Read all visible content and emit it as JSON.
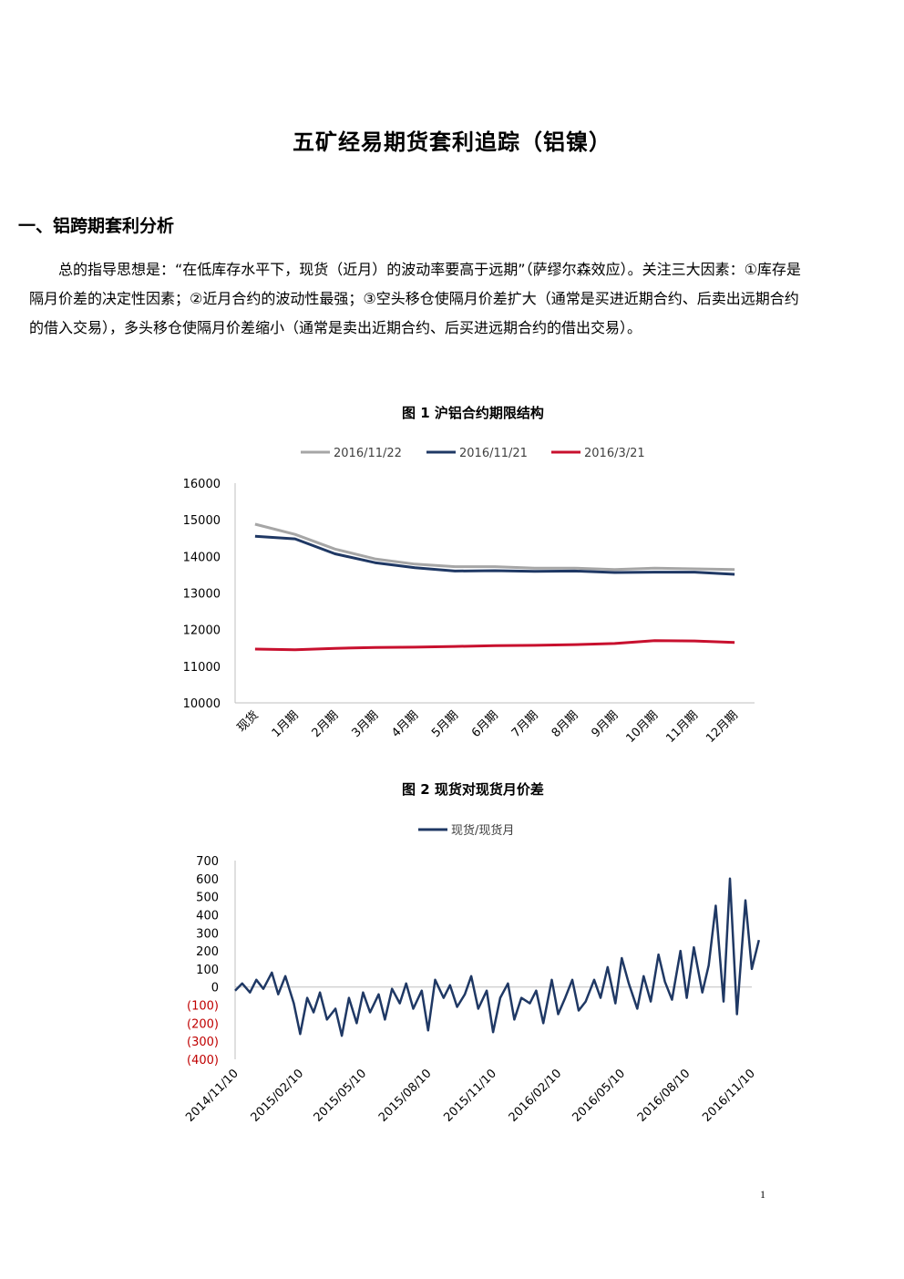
{
  "doc": {
    "title": "五矿经易期货套利追踪（铝镍）",
    "section_1": "一、铝跨期套利分析",
    "paragraph": "总的指导思想是：“在低库存水平下，现货（近月）的波动率要高于远期”（萨缪尔森效应）。关注三大因素：①库存是隔月价差的决定性因素；②近月合约的波动性最强；③空头移仓使隔月价差扩大（通常是买进近期合约、后卖出远期合约的借入交易），多头移仓使隔月价差缩小（通常是卖出近期合约、后买进远期合约的借出交易）。",
    "fig1_caption": "图 1  沪铝合约期限结构",
    "fig2_caption": "图 2  现货对现货月价差",
    "page_number": "1"
  },
  "chart_data": [
    {
      "type": "line",
      "categories": [
        "现货",
        "1月期",
        "2月期",
        "3月期",
        "4月期",
        "5月期",
        "6月期",
        "7月期",
        "8月期",
        "9月期",
        "10月期",
        "11月期",
        "12月期"
      ],
      "ylim": [
        10000,
        16000
      ],
      "yticks": [
        10000,
        11000,
        12000,
        13000,
        14000,
        15000,
        16000
      ],
      "legend_position": "top",
      "grid": false,
      "series": [
        {
          "name": "2016/11/22",
          "color": "#a6a6a6",
          "values": [
            14880,
            14600,
            14200,
            13930,
            13790,
            13720,
            13720,
            13680,
            13680,
            13640,
            13680,
            13660,
            13640
          ]
        },
        {
          "name": "2016/11/21",
          "color": "#1f3864",
          "values": [
            14550,
            14480,
            14070,
            13830,
            13690,
            13600,
            13610,
            13590,
            13600,
            13560,
            13570,
            13570,
            13510
          ]
        },
        {
          "name": "2016/3/21",
          "color": "#c8102e",
          "values": [
            11470,
            11450,
            11490,
            11510,
            11520,
            11540,
            11560,
            11570,
            11590,
            11620,
            11700,
            11690,
            11650
          ]
        }
      ]
    },
    {
      "type": "line",
      "ylim": [
        -400,
        700
      ],
      "yticks": [
        {
          "value": 700,
          "label": "700",
          "color": "#000000"
        },
        {
          "value": 600,
          "label": "600",
          "color": "#000000"
        },
        {
          "value": 500,
          "label": "500",
          "color": "#000000"
        },
        {
          "value": 400,
          "label": "400",
          "color": "#000000"
        },
        {
          "value": 300,
          "label": "300",
          "color": "#000000"
        },
        {
          "value": 200,
          "label": "200",
          "color": "#000000"
        },
        {
          "value": 100,
          "label": "100",
          "color": "#000000"
        },
        {
          "value": 0,
          "label": "0",
          "color": "#000000"
        },
        {
          "value": -100,
          "label": "(100)",
          "color": "#c00000"
        },
        {
          "value": -200,
          "label": "(200)",
          "color": "#c00000"
        },
        {
          "value": -300,
          "label": "(300)",
          "color": "#c00000"
        },
        {
          "value": -400,
          "label": "(400)",
          "color": "#c00000"
        }
      ],
      "xticks": [
        "2014/11/10",
        "2015/02/10",
        "2015/05/10",
        "2015/08/10",
        "2015/11/10",
        "2016/02/10",
        "2016/05/10",
        "2016/08/10",
        "2016/11/10"
      ],
      "legend_position": "top",
      "grid": false,
      "series": [
        {
          "name": "现货/现货月",
          "color": "#1f3864",
          "x": [
            "2014/11/10",
            "2014/11/20",
            "2014/12/01",
            "2014/12/10",
            "2014/12/20",
            "2015/01/01",
            "2015/01/10",
            "2015/01/20",
            "2015/02/01",
            "2015/02/10",
            "2015/02/20",
            "2015/03/01",
            "2015/03/10",
            "2015/03/20",
            "2015/04/01",
            "2015/04/10",
            "2015/04/20",
            "2015/05/01",
            "2015/05/10",
            "2015/05/20",
            "2015/06/01",
            "2015/06/10",
            "2015/06/20",
            "2015/07/01",
            "2015/07/10",
            "2015/07/20",
            "2015/08/01",
            "2015/08/10",
            "2015/08/20",
            "2015/09/01",
            "2015/09/10",
            "2015/09/20",
            "2015/10/01",
            "2015/10/10",
            "2015/10/20",
            "2015/11/01",
            "2015/11/10",
            "2015/11/20",
            "2015/12/01",
            "2015/12/10",
            "2015/12/20",
            "2016/01/01",
            "2016/01/10",
            "2016/01/20",
            "2016/02/01",
            "2016/02/10",
            "2016/02/20",
            "2016/03/01",
            "2016/03/10",
            "2016/03/20",
            "2016/04/01",
            "2016/04/10",
            "2016/04/20",
            "2016/05/01",
            "2016/05/10",
            "2016/05/20",
            "2016/06/01",
            "2016/06/10",
            "2016/06/20",
            "2016/07/01",
            "2016/07/10",
            "2016/07/20",
            "2016/08/01",
            "2016/08/10",
            "2016/08/20",
            "2016/09/01",
            "2016/09/10",
            "2016/09/20",
            "2016/10/01",
            "2016/10/10",
            "2016/10/20",
            "2016/11/01",
            "2016/11/10",
            "2016/11/20"
          ],
          "values": [
            -20,
            20,
            -30,
            40,
            -10,
            80,
            -40,
            60,
            -90,
            -260,
            -60,
            -140,
            -30,
            -180,
            -120,
            -270,
            -60,
            -200,
            -30,
            -140,
            -40,
            -180,
            -10,
            -90,
            20,
            -120,
            -20,
            -240,
            40,
            -60,
            10,
            -110,
            -40,
            60,
            -120,
            -20,
            -250,
            -60,
            20,
            -180,
            -60,
            -90,
            -20,
            -200,
            40,
            -150,
            -60,
            40,
            -130,
            -80,
            40,
            -60,
            110,
            -90,
            160,
            20,
            -120,
            60,
            -80,
            180,
            30,
            -70,
            200,
            -60,
            220,
            -30,
            120,
            450,
            -80,
            600,
            -150,
            480,
            100,
            260
          ]
        }
      ]
    }
  ]
}
